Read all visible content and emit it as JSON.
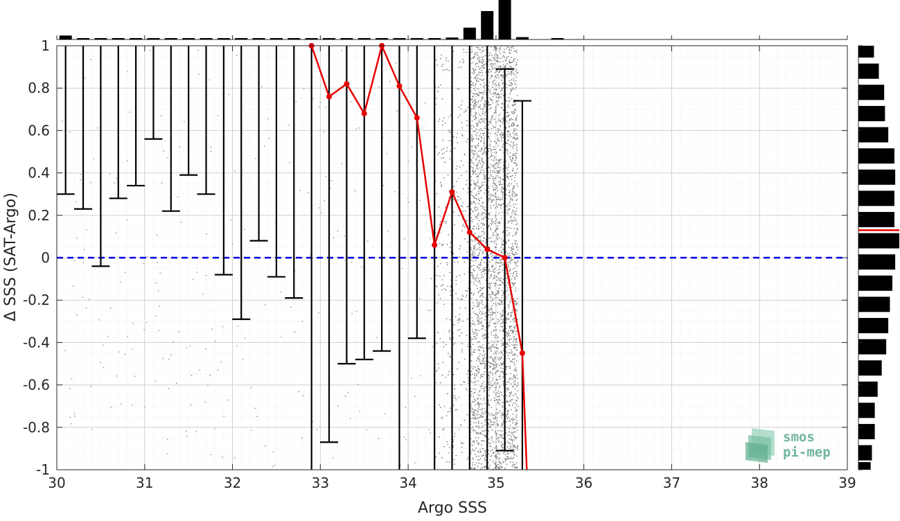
{
  "chart_data": {
    "type": "scatter",
    "xlabel": "Argo SSS",
    "ylabel": "Δ SSS (SAT-Argo)",
    "xlim": [
      30,
      39
    ],
    "ylim": [
      -1,
      1
    ],
    "xticks": [
      30,
      31,
      32,
      33,
      34,
      35,
      36,
      37,
      38,
      39
    ],
    "yticks": [
      -1,
      -0.8,
      -0.6,
      -0.4,
      -0.2,
      0,
      0.2,
      0.4,
      0.6,
      0.8,
      1
    ],
    "xtick_labels": [
      "30",
      "31",
      "32",
      "33",
      "34",
      "35",
      "36",
      "37",
      "38",
      "39"
    ],
    "ytick_labels": [
      "-1",
      "-0.8",
      "-0.6",
      "-0.4",
      "-0.2",
      "0",
      "0.2",
      "0.4",
      "0.6",
      "0.8",
      "1"
    ],
    "grid": true,
    "minor_grid": true,
    "zero_line": {
      "y": 0,
      "style": "dashed",
      "color": "#0000e6"
    },
    "median_series": {
      "color": "#e60000",
      "points": [
        [
          32.9,
          1.0
        ],
        [
          33.1,
          0.76
        ],
        [
          33.3,
          0.82
        ],
        [
          33.5,
          0.68
        ],
        [
          33.7,
          1.0
        ],
        [
          33.9,
          0.81
        ],
        [
          34.1,
          0.66
        ],
        [
          34.3,
          0.06
        ],
        [
          34.5,
          0.31
        ],
        [
          34.7,
          0.12
        ],
        [
          34.9,
          0.04
        ],
        [
          35.1,
          0.0
        ],
        [
          35.3,
          -0.45
        ],
        [
          35.35,
          -1.0
        ]
      ]
    },
    "error_bars": [
      {
        "x": 30.1,
        "low": 0.3,
        "high": 1.0
      },
      {
        "x": 30.3,
        "low": 0.23,
        "high": 1.0
      },
      {
        "x": 30.5,
        "low": -0.04,
        "high": 1.0
      },
      {
        "x": 30.7,
        "low": 0.28,
        "high": 1.0
      },
      {
        "x": 30.9,
        "low": 0.34,
        "high": 1.0
      },
      {
        "x": 31.1,
        "low": 0.56,
        "high": 1.0
      },
      {
        "x": 31.3,
        "low": 0.22,
        "high": 1.0
      },
      {
        "x": 31.5,
        "low": 0.39,
        "high": 1.0
      },
      {
        "x": 31.7,
        "low": 0.3,
        "high": 1.0
      },
      {
        "x": 31.9,
        "low": -0.08,
        "high": 1.0
      },
      {
        "x": 32.1,
        "low": -0.29,
        "high": 1.0
      },
      {
        "x": 32.3,
        "low": 0.08,
        "high": 1.0
      },
      {
        "x": 32.5,
        "low": -0.09,
        "high": 1.0
      },
      {
        "x": 32.7,
        "low": -0.19,
        "high": 1.0
      },
      {
        "x": 32.9,
        "low": -1.0,
        "high": 1.0
      },
      {
        "x": 33.1,
        "low": -0.87,
        "high": 1.0
      },
      {
        "x": 33.3,
        "low": -0.5,
        "high": 1.0
      },
      {
        "x": 33.5,
        "low": -0.48,
        "high": 1.0
      },
      {
        "x": 33.7,
        "low": -0.44,
        "high": 1.0
      },
      {
        "x": 33.9,
        "low": -1.0,
        "high": 1.0
      },
      {
        "x": 34.1,
        "low": -0.38,
        "high": 1.0
      },
      {
        "x": 34.3,
        "low": -1.0,
        "high": 1.0
      },
      {
        "x": 34.5,
        "low": -1.0,
        "high": 1.0
      },
      {
        "x": 34.7,
        "low": -1.0,
        "high": 1.0
      },
      {
        "x": 34.9,
        "low": -1.0,
        "high": 1.0
      },
      {
        "x": 35.1,
        "low": -0.91,
        "high": 0.89
      },
      {
        "x": 35.3,
        "low": -1.0,
        "high": 0.74
      }
    ],
    "x_histogram": {
      "bin_centers": [
        30.1,
        30.3,
        30.5,
        30.7,
        30.9,
        31.1,
        31.3,
        31.5,
        31.7,
        31.9,
        32.1,
        32.3,
        32.5,
        32.7,
        32.9,
        33.1,
        33.3,
        33.5,
        33.7,
        33.9,
        34.1,
        34.3,
        34.5,
        34.7,
        34.9,
        35.1,
        35.3,
        35.5,
        35.7
      ],
      "values": [
        0.1,
        0.03,
        0.03,
        0.03,
        0.03,
        0.03,
        0.03,
        0.03,
        0.03,
        0.03,
        0.03,
        0.03,
        0.03,
        0.03,
        0.03,
        0.03,
        0.03,
        0.03,
        0.03,
        0.03,
        0.03,
        0.03,
        0.05,
        0.3,
        0.72,
        1.0,
        0.06,
        0.0,
        0.01
      ]
    },
    "y_histogram": {
      "bin_centers": [
        0.98,
        0.88,
        0.78,
        0.68,
        0.58,
        0.48,
        0.38,
        0.28,
        0.18,
        0.08,
        -0.02,
        -0.12,
        -0.22,
        -0.32,
        -0.42,
        -0.52,
        -0.62,
        -0.72,
        -0.82,
        -0.92,
        -1.0
      ],
      "values": [
        0.38,
        0.5,
        0.63,
        0.65,
        0.73,
        0.88,
        0.9,
        0.88,
        0.88,
        1.0,
        0.9,
        0.83,
        0.77,
        0.73,
        0.68,
        0.57,
        0.47,
        0.4,
        0.4,
        0.33,
        0.3
      ],
      "median_marker": 0.13
    },
    "scatter_density": {
      "dense_region": {
        "x": [
          34.7,
          35.25
        ],
        "y": [
          -1,
          1
        ]
      },
      "sparse_region": {
        "x": [
          30,
          34.7
        ],
        "y": [
          -1,
          1
        ]
      },
      "color": "#808080"
    }
  },
  "logo": {
    "line1": "smos",
    "line2": "pi-mep"
  }
}
